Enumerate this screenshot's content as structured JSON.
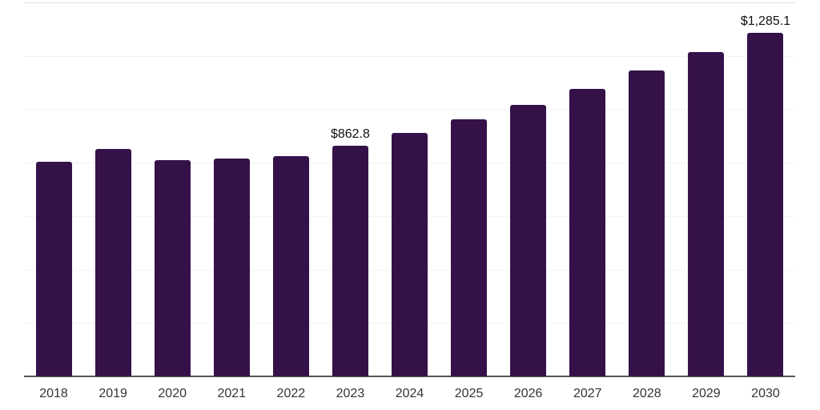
{
  "chart_data": {
    "type": "bar",
    "title": "",
    "xlabel": "",
    "ylabel": "",
    "categories": [
      "2018",
      "2019",
      "2020",
      "2021",
      "2022",
      "2023",
      "2024",
      "2025",
      "2026",
      "2027",
      "2028",
      "2029",
      "2030"
    ],
    "values": [
      803,
      851.5,
      808.5,
      814.5,
      824.5,
      862.8,
      912.5,
      963,
      1016.5,
      1075,
      1144,
      1214,
      1285.1
    ],
    "data_labels": [
      "",
      "",
      "",
      "",
      "",
      "$862.8",
      "",
      "",
      "",
      "",
      "",
      "",
      "$1,285.1"
    ],
    "labeled_points_note": "Only the 2023 and 2030 bars show data labels; other values estimated from gridlines",
    "ylim": [
      0,
      1400
    ],
    "gridline_step": 200,
    "grid": "horizontal only, no y-axis tick labels",
    "legend": "none",
    "colors": {
      "bar": "#35114A",
      "value_label": "#111111",
      "axis_tick_label": "#333333",
      "axis_line": "#555555",
      "gridline": "#F3F3F3",
      "top_gridline": "#E2E2E2",
      "background": "#FFFFFF"
    }
  }
}
